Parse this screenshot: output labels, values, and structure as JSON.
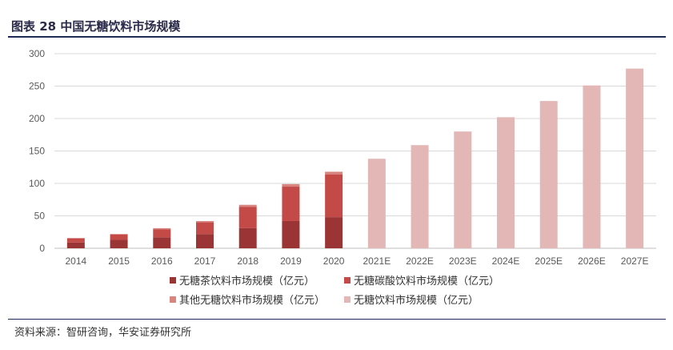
{
  "header": {
    "title": "图表 28  中国无糖饮料市场规模"
  },
  "footer": {
    "source": "资料来源：智研咨询，华安证券研究所"
  },
  "chart_data": {
    "type": "bar",
    "stacked": true,
    "categories": [
      "2014",
      "2015",
      "2016",
      "2017",
      "2018",
      "2019",
      "2020",
      "2021E",
      "2022E",
      "2023E",
      "2024E",
      "2025E",
      "2026E",
      "2027E"
    ],
    "ylim": [
      0,
      300
    ],
    "yticks": [
      0,
      50,
      100,
      150,
      200,
      250,
      300
    ],
    "grid": true,
    "legend_position": "bottom",
    "series": [
      {
        "name": "无糖茶饮料市场规模（亿元）",
        "color": "#9b3535",
        "values": [
          9,
          13,
          17,
          22,
          31,
          42,
          48,
          null,
          null,
          null,
          null,
          null,
          null,
          null
        ]
      },
      {
        "name": "无糖碳酸饮料市场规模（亿元）",
        "color": "#c44a48",
        "values": [
          6,
          8,
          12,
          18,
          33,
          53,
          66,
          null,
          null,
          null,
          null,
          null,
          null,
          null
        ]
      },
      {
        "name": "其他无糖饮料市场规模（亿元）",
        "color": "#d8847f",
        "values": [
          1,
          1,
          2,
          2,
          3,
          4,
          4,
          null,
          null,
          null,
          null,
          null,
          null,
          null
        ]
      },
      {
        "name": "无糖饮料市场规模（亿元）",
        "color": "#e2b7b6",
        "values": [
          null,
          null,
          null,
          null,
          null,
          null,
          null,
          138,
          159,
          180,
          202,
          227,
          251,
          277
        ]
      }
    ]
  }
}
